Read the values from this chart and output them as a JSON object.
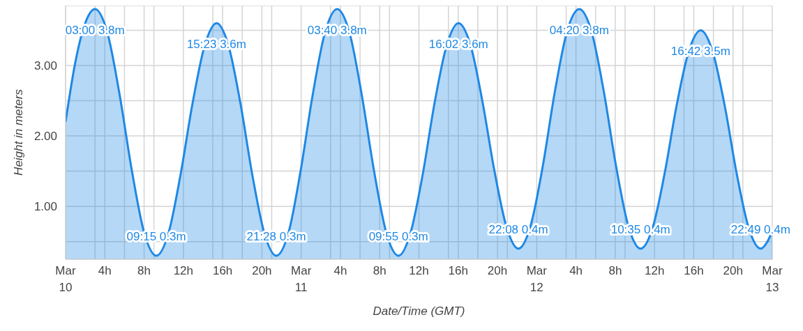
{
  "chart_data": {
    "type": "area",
    "xlabel": "Date/Time (GMT)",
    "ylabel": "Height in meters",
    "x": [
      "--03-10T00:00",
      "--03-10T01:00",
      "--03-10T02:00",
      "--03-10T03:00",
      "--03-10T04:15",
      "--03-10T05:30",
      "--03-10T06:45",
      "--03-10T08:00",
      "--03-10T09:15",
      "--03-10T10:29",
      "--03-10T11:42",
      "--03-10T12:56",
      "--03-10T14:10",
      "--03-10T15:23",
      "--03-10T16:36",
      "--03-10T17:49",
      "--03-10T19:02",
      "--03-10T20:15",
      "--03-10T21:28",
      "--03-10T22:43",
      "--03-10T23:57",
      "--03-11T01:11",
      "--03-11T02:26",
      "--03-11T03:40",
      "--03-11T04:55",
      "--03-11T06:10",
      "--03-11T07:25",
      "--03-11T08:40",
      "--03-11T09:55",
      "--03-11T11:08",
      "--03-11T12:22",
      "--03-11T13:35",
      "--03-11T14:49",
      "--03-11T16:02",
      "--03-11T17:15",
      "--03-11T18:28",
      "--03-11T19:41",
      "--03-11T20:55",
      "--03-11T22:08",
      "--03-11T23:22",
      "--03-12T00:37",
      "--03-12T01:51",
      "--03-12T03:05",
      "--03-12T04:20",
      "--03-12T05:35",
      "--03-12T06:50",
      "--03-12T08:05",
      "--03-12T09:20",
      "--03-12T10:35",
      "--03-12T11:49",
      "--03-12T13:02",
      "--03-12T14:15",
      "--03-12T15:29",
      "--03-12T16:42",
      "--03-12T17:55",
      "--03-12T19:09",
      "--03-12T20:22",
      "--03-12T21:35",
      "--03-12T22:49",
      "--03-12T23:30",
      "--03-13T00:00"
    ],
    "series": [
      {
        "color": "#1e88e5",
        "values": [
          2.2,
          3.05,
          3.6,
          3.8,
          3.47,
          2.59,
          1.51,
          0.63,
          0.3,
          0.62,
          1.44,
          2.46,
          3.28,
          3.6,
          3.28,
          2.46,
          1.44,
          0.62,
          0.3,
          0.63,
          1.51,
          2.59,
          3.47,
          3.8,
          3.47,
          2.59,
          1.51,
          0.63,
          0.3,
          0.62,
          1.44,
          2.46,
          3.28,
          3.6,
          3.29,
          2.49,
          1.51,
          0.71,
          0.4,
          0.72,
          1.57,
          2.63,
          3.48,
          3.8,
          3.48,
          2.63,
          1.57,
          0.72,
          0.4,
          0.7,
          1.47,
          2.43,
          3.2,
          3.5,
          3.2,
          2.43,
          1.47,
          0.7,
          0.4,
          0.5,
          0.65
        ]
      }
    ],
    "xlim": [
      "--03-10T00:00",
      "--03-13T00:00"
    ],
    "xticks": [
      {
        "value": "--03-10T00:00",
        "label": "Mar 10"
      },
      {
        "value": "--03-10T03:00",
        "label": null
      },
      {
        "value": "--03-10T04:00",
        "label": "4h"
      },
      {
        "value": "--03-10T06:00",
        "label": null
      },
      {
        "value": "--03-10T08:00",
        "label": "8h"
      },
      {
        "value": "--03-10T09:00",
        "label": null
      },
      {
        "value": "--03-10T12:00",
        "label": "12h"
      },
      {
        "value": "--03-10T15:00",
        "label": null
      },
      {
        "value": "--03-10T16:00",
        "label": "16h"
      },
      {
        "value": "--03-10T18:00",
        "label": null
      },
      {
        "value": "--03-10T20:00",
        "label": "20h"
      },
      {
        "value": "--03-10T21:00",
        "label": null
      },
      {
        "value": "--03-11T00:00",
        "label": "Mar 11"
      },
      {
        "value": "--03-11T03:00",
        "label": null
      },
      {
        "value": "--03-11T04:00",
        "label": "4h"
      },
      {
        "value": "--03-11T06:00",
        "label": null
      },
      {
        "value": "--03-11T08:00",
        "label": "8h"
      },
      {
        "value": "--03-11T09:00",
        "label": null
      },
      {
        "value": "--03-11T12:00",
        "label": "12h"
      },
      {
        "value": "--03-11T15:00",
        "label": null
      },
      {
        "value": "--03-11T16:00",
        "label": "16h"
      },
      {
        "value": "--03-11T18:00",
        "label": null
      },
      {
        "value": "--03-11T20:00",
        "label": "20h"
      },
      {
        "value": "--03-11T21:00",
        "label": null
      },
      {
        "value": "--03-12T00:00",
        "label": "Mar 12"
      },
      {
        "value": "--03-12T03:00",
        "label": null
      },
      {
        "value": "--03-12T04:00",
        "label": "4h"
      },
      {
        "value": "--03-12T06:00",
        "label": null
      },
      {
        "value": "--03-12T08:00",
        "label": "8h"
      },
      {
        "value": "--03-12T09:00",
        "label": null
      },
      {
        "value": "--03-12T12:00",
        "label": "12h"
      },
      {
        "value": "--03-12T15:00",
        "label": null
      },
      {
        "value": "--03-12T16:00",
        "label": "16h"
      },
      {
        "value": "--03-12T18:00",
        "label": null
      },
      {
        "value": "--03-12T20:00",
        "label": "20h"
      },
      {
        "value": "--03-12T21:00",
        "label": null
      },
      {
        "value": "--03-13T00:00",
        "label": "Mar 13"
      }
    ],
    "ylim": [
      0.25,
      3.85
    ],
    "yticks": [
      {
        "value": 0.5,
        "label": null
      },
      {
        "value": 1,
        "label": "1.00"
      },
      {
        "value": 1.5,
        "label": null
      },
      {
        "value": 2,
        "label": "2.00"
      },
      {
        "value": 2.5,
        "label": null
      },
      {
        "value": 3,
        "label": "3.00"
      },
      {
        "value": 3.5,
        "label": null
      }
    ],
    "grid": true,
    "annotations": [
      {
        "text": "03:00 3.8m",
        "x": "--03-10T03:00",
        "y": 3.8
      },
      {
        "text": "09:15 0.3m",
        "x": "--03-10T09:15",
        "y": 0.3
      },
      {
        "text": "15:23 3.6m",
        "x": "--03-10T15:23",
        "y": 3.6
      },
      {
        "text": "21:28 0.3m",
        "x": "--03-10T21:28",
        "y": 0.3
      },
      {
        "text": "03:40 3.8m",
        "x": "--03-11T03:40",
        "y": 3.8
      },
      {
        "text": "09:55 0.3m",
        "x": "--03-11T09:55",
        "y": 0.3
      },
      {
        "text": "16:02 3.6m",
        "x": "--03-11T16:02",
        "y": 3.6
      },
      {
        "text": "22:08 0.4m",
        "x": "--03-11T22:08",
        "y": 0.4
      },
      {
        "text": "04:20 3.8m",
        "x": "--03-12T04:20",
        "y": 3.8
      },
      {
        "text": "10:35 0.4m",
        "x": "--03-12T10:35",
        "y": 0.4
      },
      {
        "text": "16:42 3.5m",
        "x": "--03-12T16:42",
        "y": 3.5
      },
      {
        "text": "22:49 0.4m",
        "x": "--03-12T22:49",
        "y": 0.4
      }
    ]
  }
}
